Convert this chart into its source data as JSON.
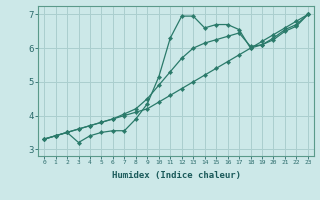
{
  "xlabel": "Humidex (Indice chaleur)",
  "bg_color": "#cce8e8",
  "grid_color": "#aacece",
  "line_color": "#2a7a6a",
  "xlim": [
    -0.5,
    23.5
  ],
  "ylim": [
    2.8,
    7.25
  ],
  "xticks": [
    0,
    1,
    2,
    3,
    4,
    5,
    6,
    7,
    8,
    9,
    10,
    11,
    12,
    13,
    14,
    15,
    16,
    17,
    18,
    19,
    20,
    21,
    22,
    23
  ],
  "yticks": [
    3,
    4,
    5,
    6,
    7
  ],
  "line1_x": [
    0,
    1,
    2,
    3,
    4,
    5,
    6,
    7,
    8,
    9,
    10,
    11,
    12,
    13,
    14,
    15,
    16,
    17,
    18,
    19,
    20,
    21,
    22,
    23
  ],
  "line1_y": [
    3.3,
    3.4,
    3.5,
    3.2,
    3.4,
    3.5,
    3.55,
    3.55,
    3.9,
    4.35,
    5.15,
    6.3,
    6.95,
    6.95,
    6.6,
    6.7,
    6.7,
    6.55,
    6.0,
    6.1,
    6.3,
    6.55,
    6.7,
    7.0
  ],
  "line2_x": [
    0,
    1,
    2,
    3,
    4,
    5,
    6,
    7,
    8,
    9,
    10,
    11,
    12,
    13,
    14,
    15,
    16,
    17,
    18,
    19,
    20,
    21,
    22,
    23
  ],
  "line2_y": [
    3.3,
    3.4,
    3.5,
    3.6,
    3.7,
    3.8,
    3.9,
    4.0,
    4.1,
    4.2,
    4.4,
    4.6,
    4.8,
    5.0,
    5.2,
    5.4,
    5.6,
    5.8,
    6.0,
    6.2,
    6.4,
    6.6,
    6.8,
    7.0
  ],
  "line3_x": [
    0,
    1,
    2,
    3,
    4,
    5,
    6,
    7,
    8,
    9,
    10,
    11,
    12,
    13,
    14,
    15,
    16,
    17,
    18,
    19,
    20,
    21,
    22,
    23
  ],
  "line3_y": [
    3.3,
    3.4,
    3.5,
    3.6,
    3.7,
    3.8,
    3.9,
    4.05,
    4.2,
    4.5,
    4.9,
    5.3,
    5.7,
    6.0,
    6.15,
    6.25,
    6.35,
    6.45,
    6.05,
    6.1,
    6.25,
    6.5,
    6.65,
    7.0
  ]
}
